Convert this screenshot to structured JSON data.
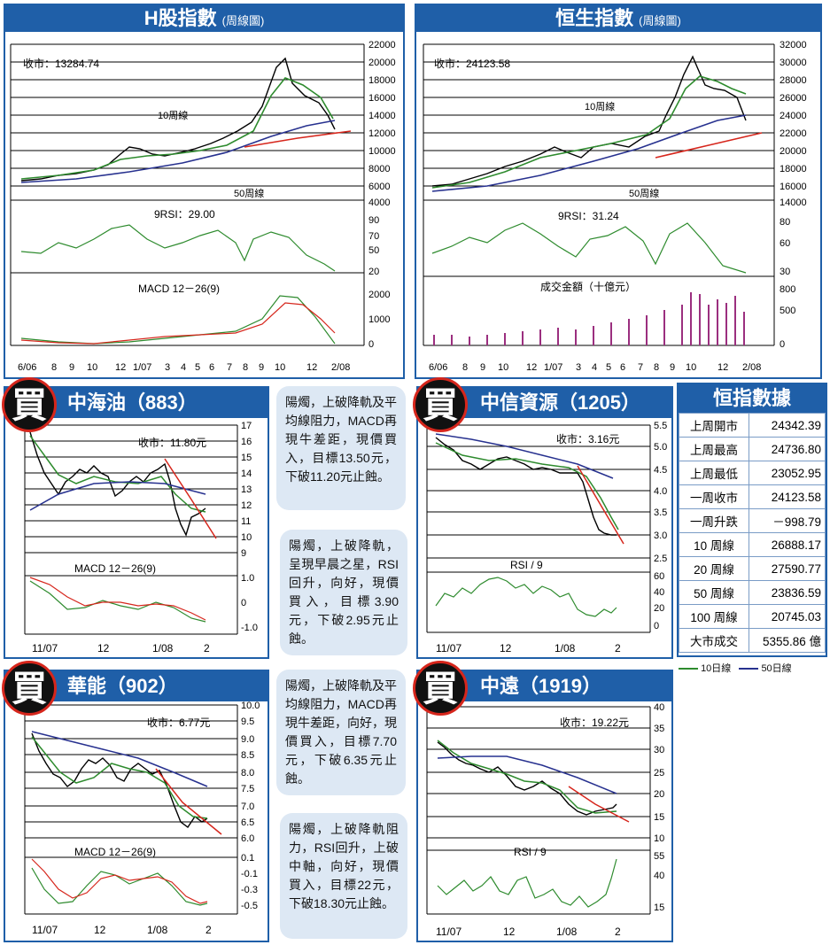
{
  "colors": {
    "brand_blue": "#1f5fa8",
    "ma_short": "#2e8b2e",
    "ma_long": "#27318f",
    "trend_red": "#d6261c"
  },
  "hshare": {
    "title": "H股指數",
    "subtitle": "(周線圖)",
    "close_label": "收市：13284.74",
    "ma10_label": "10周線",
    "ma50_label": "50周線",
    "rsi_label": "9RSI：29.00",
    "macd_label": "MACD 12－26(9)",
    "price_ticks": [
      "22000",
      "20000",
      "18000",
      "16000",
      "14000",
      "12000",
      "10000",
      "8000",
      "6000",
      "4000"
    ],
    "rsi_ticks": [
      "90",
      "70",
      "50",
      "20"
    ],
    "macd_ticks": [
      "2000",
      "1000",
      "0"
    ],
    "x_ticks": [
      "6/06",
      "8",
      "9",
      "10",
      "12",
      "1/07",
      "3",
      "4",
      "5",
      "6",
      "7",
      "8",
      "9",
      "10",
      "12",
      "2/08"
    ]
  },
  "hsi": {
    "title": "恒生指數",
    "subtitle": "(周線圖)",
    "close_label": "收市：24123.58",
    "ma10_label": "10周線",
    "ma50_label": "50周線",
    "rsi_label": "9RSI：31.24",
    "vol_label": "成交金額（十億元）",
    "price_ticks": [
      "32000",
      "30000",
      "28000",
      "26000",
      "24000",
      "22000",
      "20000",
      "18000",
      "16000",
      "14000"
    ],
    "rsi_ticks": [
      "80",
      "60",
      "30"
    ],
    "vol_ticks": [
      "800",
      "500",
      "0"
    ],
    "x_ticks": [
      "6/06",
      "8",
      "9",
      "10",
      "12",
      "1/07",
      "3",
      "4",
      "5",
      "6",
      "7",
      "8",
      "9",
      "10",
      "12",
      "2/08"
    ]
  },
  "cnooc": {
    "badge": "買",
    "title": "中海油（883）",
    "close_label": "收市：11.80元",
    "macd_label": "MACD 12－26(9)",
    "price_ticks": [
      "17",
      "16",
      "15",
      "14",
      "13",
      "12",
      "11",
      "10",
      "9"
    ],
    "macd_ticks": [
      "1.0",
      "0",
      "-1.0"
    ],
    "x_ticks": [
      "11/07",
      "12",
      "1/08",
      "2"
    ],
    "note": "陽燭，上破降軌及平均線阻力，MACD再現牛差距，現價買入，目標13.50元，下破11.20元止蝕。"
  },
  "citic": {
    "badge": "買",
    "title": "中信資源（1205）",
    "close_label": "收市：3.16元",
    "rsi_label": "RSI / 9",
    "price_ticks": [
      "5.5",
      "5.0",
      "4.5",
      "4.0",
      "3.5",
      "3.0",
      "2.5"
    ],
    "rsi_ticks": [
      "60",
      "40",
      "20",
      "0"
    ],
    "x_ticks": [
      "11/07",
      "12",
      "1/08",
      "2"
    ],
    "note": "陽燭，上破降軌，呈現早晨之星，RSI回升，向好，現價買入，目標3.90元，下破2.95元止蝕。"
  },
  "huaneng": {
    "badge": "買",
    "title": "華能（902）",
    "close_label": "收市：6.77元",
    "macd_label": "MACD 12－26(9)",
    "price_ticks": [
      "10.0",
      "9.5",
      "9.0",
      "8.5",
      "8.0",
      "7.5",
      "7.0",
      "6.5",
      "6.0"
    ],
    "macd_ticks": [
      "0.1",
      "-0.1",
      "-0.3",
      "-0.5"
    ],
    "x_ticks": [
      "11/07",
      "12",
      "1/08",
      "2"
    ],
    "note": "陽燭，上破降軌及平均線阻力，MACD再現牛差距，向好，現價買入，目標7.70元，下破6.35元止蝕。"
  },
  "cosco": {
    "badge": "買",
    "title": "中遠（1919）",
    "close_label": "收市：19.22元",
    "rsi_label": "RSI / 9",
    "price_ticks": [
      "40",
      "35",
      "30",
      "25",
      "20",
      "15",
      "10"
    ],
    "rsi_ticks": [
      "55",
      "40",
      "15"
    ],
    "x_ticks": [
      "11/07",
      "12",
      "1/08",
      "2"
    ],
    "note": "陽燭，上破降軌阻力，RSI回升，上破中軸，向好，現價買入，目標22元，下破18.30元止蝕。"
  },
  "hsi_table": {
    "title": "恒指數據",
    "rows": [
      {
        "k": "上周開市",
        "v": "24342.39"
      },
      {
        "k": "上周最高",
        "v": "24736.80"
      },
      {
        "k": "上周最低",
        "v": "23052.95"
      },
      {
        "k": "一周收市",
        "v": "24123.58"
      },
      {
        "k": "一周升跌",
        "v": "－998.79"
      },
      {
        "k": "10 周線",
        "v": "26888.17"
      },
      {
        "k": "20 周線",
        "v": "27590.77"
      },
      {
        "k": "50 周線",
        "v": "23836.59"
      },
      {
        "k": "100 周線",
        "v": "20745.03"
      },
      {
        "k": "大市成交",
        "v": "5355.86 億"
      }
    ]
  },
  "legend": {
    "ma10": "10日線",
    "ma50": "50日線"
  },
  "chart_data": [
    {
      "type": "line",
      "title": "H股指數",
      "series": [
        {
          "name": "10周線"
        },
        {
          "name": "50周線"
        }
      ],
      "ylim": [
        4000,
        22000
      ],
      "last_close": 13284.74
    },
    {
      "type": "line",
      "title": "恒生指數",
      "series": [
        {
          "name": "10周線"
        },
        {
          "name": "50周線"
        }
      ],
      "ylim": [
        14000,
        32000
      ],
      "last_close": 24123.58
    },
    {
      "type": "line",
      "title": "中海油（883）",
      "ylim": [
        9,
        17
      ],
      "last_close": 11.8
    },
    {
      "type": "line",
      "title": "中信資源（1205）",
      "ylim": [
        2.5,
        5.5
      ],
      "last_close": 3.16
    },
    {
      "type": "line",
      "title": "華能（902）",
      "ylim": [
        6.0,
        10.0
      ],
      "last_close": 6.77
    },
    {
      "type": "line",
      "title": "中遠（1919）",
      "ylim": [
        10,
        40
      ],
      "last_close": 19.22
    }
  ]
}
